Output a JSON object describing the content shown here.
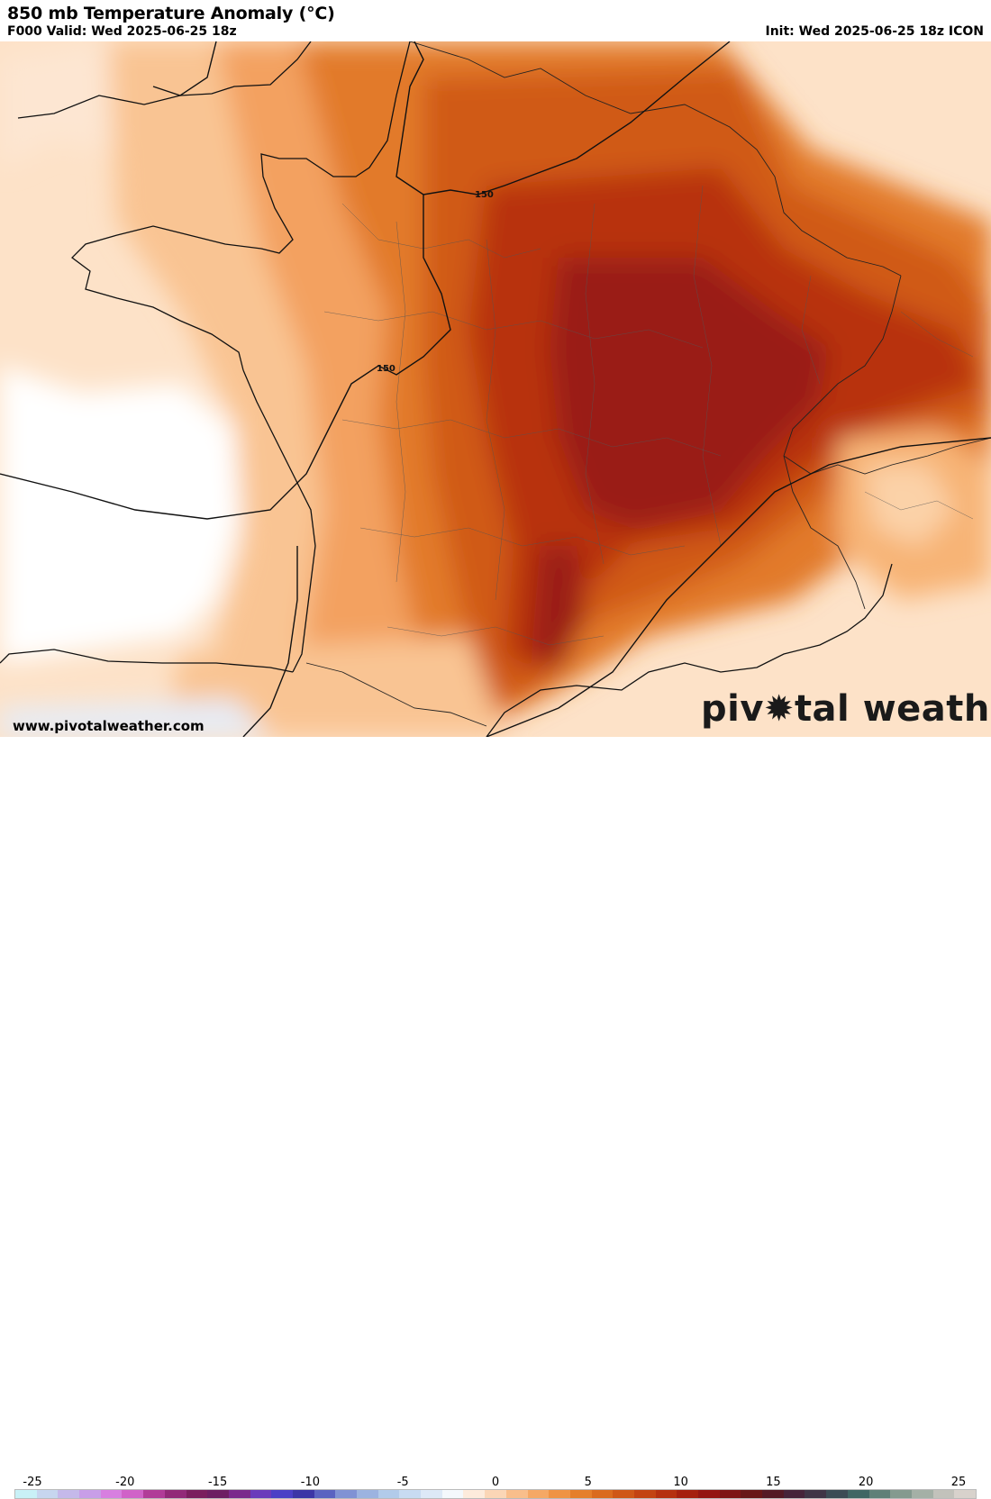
{
  "header": {
    "title": "850 mb Temperature Anomaly (°C)",
    "valid": "F000 Valid: Wed 2025-06-25 18z",
    "init": "Init: Wed 2025-06-25 18z ICON"
  },
  "map": {
    "contour_labels": [
      "150",
      "150"
    ]
  },
  "footer": {
    "url": "www.pivotalweather.com",
    "brand_left": "piv",
    "brand_right": "tal weather"
  },
  "colorbar": {
    "ticks": [
      "-25",
      "-20",
      "-15",
      "-10",
      "-5",
      "0",
      "5",
      "10",
      "15",
      "20",
      "25"
    ],
    "colors": [
      "#c9f1f7",
      "#c7d6ef",
      "#c5b9ea",
      "#c89ee8",
      "#d77fe0",
      "#d062c8",
      "#b13c98",
      "#922a78",
      "#7a1f5e",
      "#6d1f63",
      "#7a2a8c",
      "#6a3bbb",
      "#4a40c6",
      "#3b36a6",
      "#5a63c1",
      "#8092d4",
      "#9cb3e0",
      "#b2cbea",
      "#c8dbf2",
      "#dde9f7",
      "#f4f8fc",
      "#fdebdc",
      "#fbd6b6",
      "#f9be8b",
      "#f5a865",
      "#ef9344",
      "#e57f2b",
      "#da6b1f",
      "#cf5717",
      "#c34312",
      "#b5300f",
      "#a5200e",
      "#941612",
      "#7e1616",
      "#681717",
      "#541a25",
      "#46243a",
      "#3f3546",
      "#3b4c55",
      "#3f6664",
      "#5f8078",
      "#849a8f",
      "#a4b0a6",
      "#c2c2bb",
      "#d8d2cc"
    ]
  }
}
